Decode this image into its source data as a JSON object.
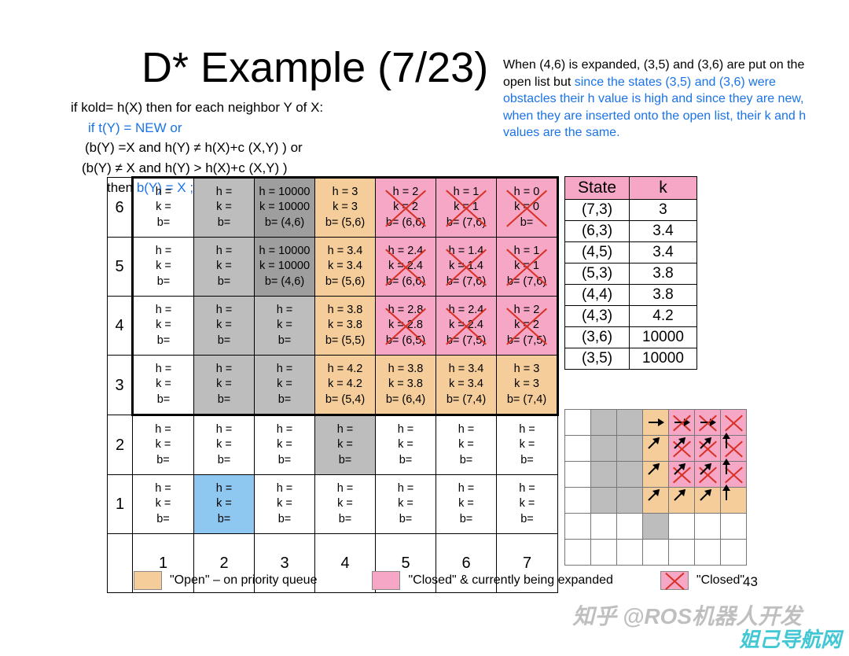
{
  "title": "D* Example (7/23)",
  "description": {
    "part1": "When (4,6) is expanded, (3,5) and (3,6) are put on the open list but ",
    "part2_blue": "since the states (3,5) and (3,6) were obstacles their h value is high and since they are new, when they are inserted onto the open list, their k and h values are the same."
  },
  "pseudo": {
    "l1": "if kold= h(X) then  for each neighbor Y of X:",
    "l2_blue": "if t(Y) = NEW or",
    "l3": "(b(Y) =X and h(Y) ≠ h(X)+c (X,Y) ) or",
    "l4": "(b(Y) ≠ X and h(Y) > h(X)+c (X,Y) )",
    "l5a": "then ",
    "l5b_blue": "b(Y) = X ; INSERT(Y, h(X)+c(X,Y))"
  },
  "grid": {
    "row_labels": [
      "6",
      "5",
      "4",
      "3",
      "2",
      "1"
    ],
    "col_labels": [
      "1",
      "2",
      "3",
      "4",
      "5",
      "6",
      "7"
    ],
    "cells": [
      [
        {
          "h": "",
          "k": "",
          "b": "",
          "cls": ""
        },
        {
          "h": "",
          "k": "",
          "b": "",
          "cls": "gray"
        },
        {
          "h": "10000",
          "k": "10000",
          "b": "(4,6)",
          "cls": "darkgray"
        },
        {
          "h": "3",
          "k": "3",
          "b": "(5,6)",
          "cls": "open"
        },
        {
          "h": "2",
          "k": "2",
          "b": "(6,6)",
          "cls": "closed",
          "cross": true
        },
        {
          "h": "1",
          "k": "1",
          "b": "(7,6)",
          "cls": "closed",
          "cross": true
        },
        {
          "h": "0",
          "k": "0",
          "b": "",
          "cls": "closed",
          "cross": true,
          "bold": true
        }
      ],
      [
        {
          "h": "",
          "k": "",
          "b": "",
          "cls": ""
        },
        {
          "h": "",
          "k": "",
          "b": "",
          "cls": "gray"
        },
        {
          "h": "10000",
          "k": "10000",
          "b": "(4,6)",
          "cls": "darkgray"
        },
        {
          "h": "3.4",
          "k": "3.4",
          "b": "(5,6)",
          "cls": "open"
        },
        {
          "h": "2.4",
          "k": "2.4",
          "b": "(6,6)",
          "cls": "closed",
          "cross": true
        },
        {
          "h": "1.4",
          "k": "1.4",
          "b": "(7,6)",
          "cls": "closed",
          "cross": true
        },
        {
          "h": "1",
          "k": "1",
          "b": "(7,6)",
          "cls": "closed",
          "cross": true
        }
      ],
      [
        {
          "h": "",
          "k": "",
          "b": "",
          "cls": ""
        },
        {
          "h": "",
          "k": "",
          "b": "",
          "cls": "gray"
        },
        {
          "h": "",
          "k": "",
          "b": "",
          "cls": "gray"
        },
        {
          "h": "3.8",
          "k": "3.8",
          "b": "(5,5)",
          "cls": "open"
        },
        {
          "h": "2.8",
          "k": "2.8",
          "b": "(6,5)",
          "cls": "closed",
          "cross": true
        },
        {
          "h": "2.4",
          "k": "2.4",
          "b": "(7,5)",
          "cls": "closed",
          "cross": true
        },
        {
          "h": "2",
          "k": "2",
          "b": "(7,5)",
          "cls": "closed",
          "cross": true
        }
      ],
      [
        {
          "h": "",
          "k": "",
          "b": "",
          "cls": ""
        },
        {
          "h": "",
          "k": "",
          "b": "",
          "cls": "gray"
        },
        {
          "h": "",
          "k": "",
          "b": "",
          "cls": "gray"
        },
        {
          "h": "4.2",
          "k": "4.2",
          "b": "(5,4)",
          "cls": "open"
        },
        {
          "h": "3.8",
          "k": "3.8",
          "b": "(6,4)",
          "cls": "open"
        },
        {
          "h": "3.4",
          "k": "3.4",
          "b": "(7,4)",
          "cls": "open"
        },
        {
          "h": "3",
          "k": "3",
          "b": "(7,4)",
          "cls": "open"
        }
      ],
      [
        {
          "h": "",
          "k": "",
          "b": "",
          "cls": ""
        },
        {
          "h": "",
          "k": "",
          "b": "",
          "cls": ""
        },
        {
          "h": "",
          "k": "",
          "b": "",
          "cls": ""
        },
        {
          "h": "",
          "k": "",
          "b": "",
          "cls": "gray"
        },
        {
          "h": "",
          "k": "",
          "b": "",
          "cls": ""
        },
        {
          "h": "",
          "k": "",
          "b": "",
          "cls": ""
        },
        {
          "h": "",
          "k": "",
          "b": "",
          "cls": ""
        }
      ],
      [
        {
          "h": "",
          "k": "",
          "b": "",
          "cls": ""
        },
        {
          "h": "",
          "k": "",
          "b": "",
          "cls": "blue-cell"
        },
        {
          "h": "",
          "k": "",
          "b": "",
          "cls": ""
        },
        {
          "h": "",
          "k": "",
          "b": "",
          "cls": ""
        },
        {
          "h": "",
          "k": "",
          "b": "",
          "cls": ""
        },
        {
          "h": "",
          "k": "",
          "b": "",
          "cls": ""
        },
        {
          "h": "",
          "k": "",
          "b": "",
          "cls": ""
        }
      ]
    ]
  },
  "state_table": {
    "headers": [
      "State",
      "k"
    ],
    "rows": [
      [
        "(7,3)",
        "3"
      ],
      [
        "(6,3)",
        "3.4"
      ],
      [
        "(4,5)",
        "3.4"
      ],
      [
        "(5,3)",
        "3.8"
      ],
      [
        "(4,4)",
        "3.8"
      ],
      [
        "(4,3)",
        "4.2"
      ],
      [
        "(3,6)",
        "10000"
      ],
      [
        "(3,5)",
        "10000"
      ]
    ]
  },
  "mini": {
    "rows": 6,
    "cols": 7,
    "cells": {
      "0-1": "gray",
      "0-2": "gray",
      "0-3": "open",
      "0-4": "closed cross",
      "0-5": "closed cross",
      "0-6": "closed cross",
      "1-1": "gray",
      "1-2": "gray",
      "1-3": "open",
      "1-4": "closed cross",
      "1-5": "closed cross",
      "1-6": "closed cross",
      "2-1": "gray",
      "2-2": "gray",
      "2-3": "open",
      "2-4": "closed cross",
      "2-5": "closed cross",
      "2-6": "closed cross",
      "3-1": "gray",
      "3-2": "gray",
      "3-3": "open",
      "3-4": "open",
      "3-5": "open",
      "3-6": "open",
      "4-3": "gray"
    },
    "arrows": {
      "0-3": 0,
      "0-4": 0,
      "0-5": 0,
      "1-3": -45,
      "1-4": -45,
      "1-5": -45,
      "1-6": -90,
      "2-3": -45,
      "2-4": -45,
      "2-5": -45,
      "2-6": -90,
      "3-3": -45,
      "3-4": -45,
      "3-5": -45,
      "3-6": -90
    }
  },
  "legend": {
    "open_color": "#f5cd9a",
    "open_label": "\"Open\" – on priority queue",
    "expand_color": "#f5a7c5",
    "expand_label": "\"Closed\" & currently being expanded",
    "closed_label": "\"Closed\""
  },
  "page_num": "43",
  "watermark1": "知乎 @ROS机器人开发",
  "watermark2": "姐己导航网",
  "colors": {
    "gray": "#bdbdbd",
    "darkgray": "#9e9e9e",
    "open": "#f5cd9a",
    "closed": "#f5a7c5",
    "blue": "#8ec7f0",
    "link": "#1a73e8",
    "cross": "#d93025"
  }
}
